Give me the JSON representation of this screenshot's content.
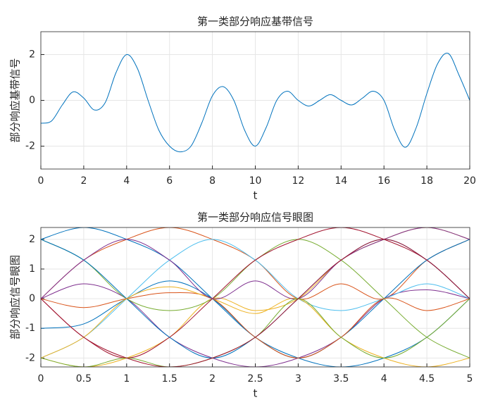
{
  "chart_data": [
    {
      "type": "line",
      "title": "第一类部分响应基带信号",
      "xlabel": "t",
      "ylabel": "部分响应基带信号",
      "x": [
        0,
        0.5,
        1,
        1.5,
        2,
        2.5,
        3,
        3.5,
        4,
        4.5,
        5,
        5.5,
        6,
        6.5,
        7,
        7.5,
        8,
        8.5,
        9,
        9.5,
        10,
        10.5,
        11,
        11.5,
        12,
        12.5,
        13,
        13.5,
        14,
        14.5,
        15,
        15.5,
        16,
        16.5,
        17,
        17.5,
        18,
        18.5,
        19,
        19.5,
        20
      ],
      "series": [
        {
          "color": "#0072bd",
          "values": [
            -1.0,
            -0.9,
            -0.2,
            0.37,
            0.1,
            -0.42,
            -0.1,
            1.2,
            2.0,
            1.4,
            0.0,
            -1.3,
            -2.0,
            -2.25,
            -2.0,
            -1.0,
            0.2,
            0.6,
            0.0,
            -1.3,
            -2.0,
            -1.2,
            0.0,
            0.4,
            0.0,
            -0.25,
            0.0,
            0.25,
            0.0,
            -0.2,
            0.1,
            0.4,
            0.0,
            -1.3,
            -2.05,
            -1.2,
            0.3,
            1.6,
            2.05,
            1.1,
            0.0
          ]
        }
      ],
      "xlim": [
        0,
        20
      ],
      "xticks": [
        0,
        2,
        4,
        6,
        8,
        10,
        12,
        14,
        16,
        18,
        20
      ],
      "ylim": [
        -3,
        3
      ],
      "yticks": [
        -2,
        0,
        2
      ],
      "grid": true
    },
    {
      "type": "line",
      "title": "第一类部分响应信号眼图",
      "xlabel": "t",
      "ylabel": "部分响应信号眼图",
      "x": [
        0,
        0.5,
        1,
        1.5,
        2,
        2.5,
        3,
        3.5,
        4,
        4.5,
        5
      ],
      "series": [
        {
          "color": "#0072bd",
          "values": [
            2,
            2.4,
            2,
            1.3,
            0,
            -1.3,
            -2,
            -2.3,
            -2,
            -1.3,
            0
          ]
        },
        {
          "color": "#d95319",
          "values": [
            0,
            1.3,
            2,
            2.4,
            2,
            1.3,
            0,
            0.5,
            0,
            1.3,
            2
          ]
        },
        {
          "color": "#edb120",
          "values": [
            -2,
            -2.3,
            -2,
            -1.3,
            0,
            -0.4,
            0,
            1.3,
            2,
            2.4,
            2
          ]
        },
        {
          "color": "#7e2f8e",
          "values": [
            0,
            0.5,
            0,
            -1.3,
            -2,
            -2.3,
            -2,
            -1.3,
            0,
            0.3,
            0
          ]
        },
        {
          "color": "#0072bd",
          "values": [
            -1,
            -0.85,
            0,
            0.6,
            0,
            -1.3,
            -2,
            -1.3,
            0,
            1.3,
            2
          ]
        },
        {
          "color": "#77ac30",
          "values": [
            2,
            1.3,
            0,
            -0.4,
            0,
            1.3,
            2,
            1.3,
            0,
            -1.3,
            -2
          ]
        },
        {
          "color": "#4dbeee",
          "values": [
            -2,
            -1.3,
            0,
            1.3,
            2,
            1.3,
            0,
            -0.4,
            0,
            0.5,
            0
          ]
        },
        {
          "color": "#a2142f",
          "values": [
            0,
            -1.3,
            -2,
            -1.3,
            0,
            1.3,
            2,
            2.4,
            2,
            1.3,
            0
          ]
        },
        {
          "color": "#0072bd",
          "values": [
            2,
            1.3,
            0,
            -1.3,
            -2,
            -1.3,
            0,
            1.3,
            2,
            1.3,
            0
          ]
        },
        {
          "color": "#d95319",
          "values": [
            0,
            -0.3,
            0,
            0.2,
            0,
            -1.3,
            -2,
            -1.3,
            0,
            -0.4,
            0
          ]
        },
        {
          "color": "#edb120",
          "values": [
            -2,
            -1.3,
            0,
            0.4,
            0,
            -0.5,
            0,
            -1.3,
            -2,
            -2.3,
            -2
          ]
        },
        {
          "color": "#7e2f8e",
          "values": [
            0,
            1.3,
            2,
            1.3,
            0,
            0.6,
            0,
            1.3,
            2,
            2.4,
            2
          ]
        },
        {
          "color": "#77ac30",
          "values": [
            -2,
            -2.3,
            -2,
            -2.3,
            -2,
            -1.3,
            0,
            -1.3,
            -2,
            -1.3,
            0
          ]
        },
        {
          "color": "#a2142f",
          "values": [
            0,
            -1.3,
            -2,
            -2.3,
            -2,
            -1.3,
            0,
            1.3,
            2,
            1.3,
            0
          ]
        }
      ],
      "xlim": [
        0,
        5
      ],
      "xticks": [
        0,
        0.5,
        1,
        1.5,
        2,
        2.5,
        3,
        3.5,
        4,
        4.5,
        5
      ],
      "ylim": [
        -2.3,
        2.4
      ],
      "yticks": [
        -2,
        -1,
        0,
        1,
        2
      ],
      "grid": true
    }
  ]
}
